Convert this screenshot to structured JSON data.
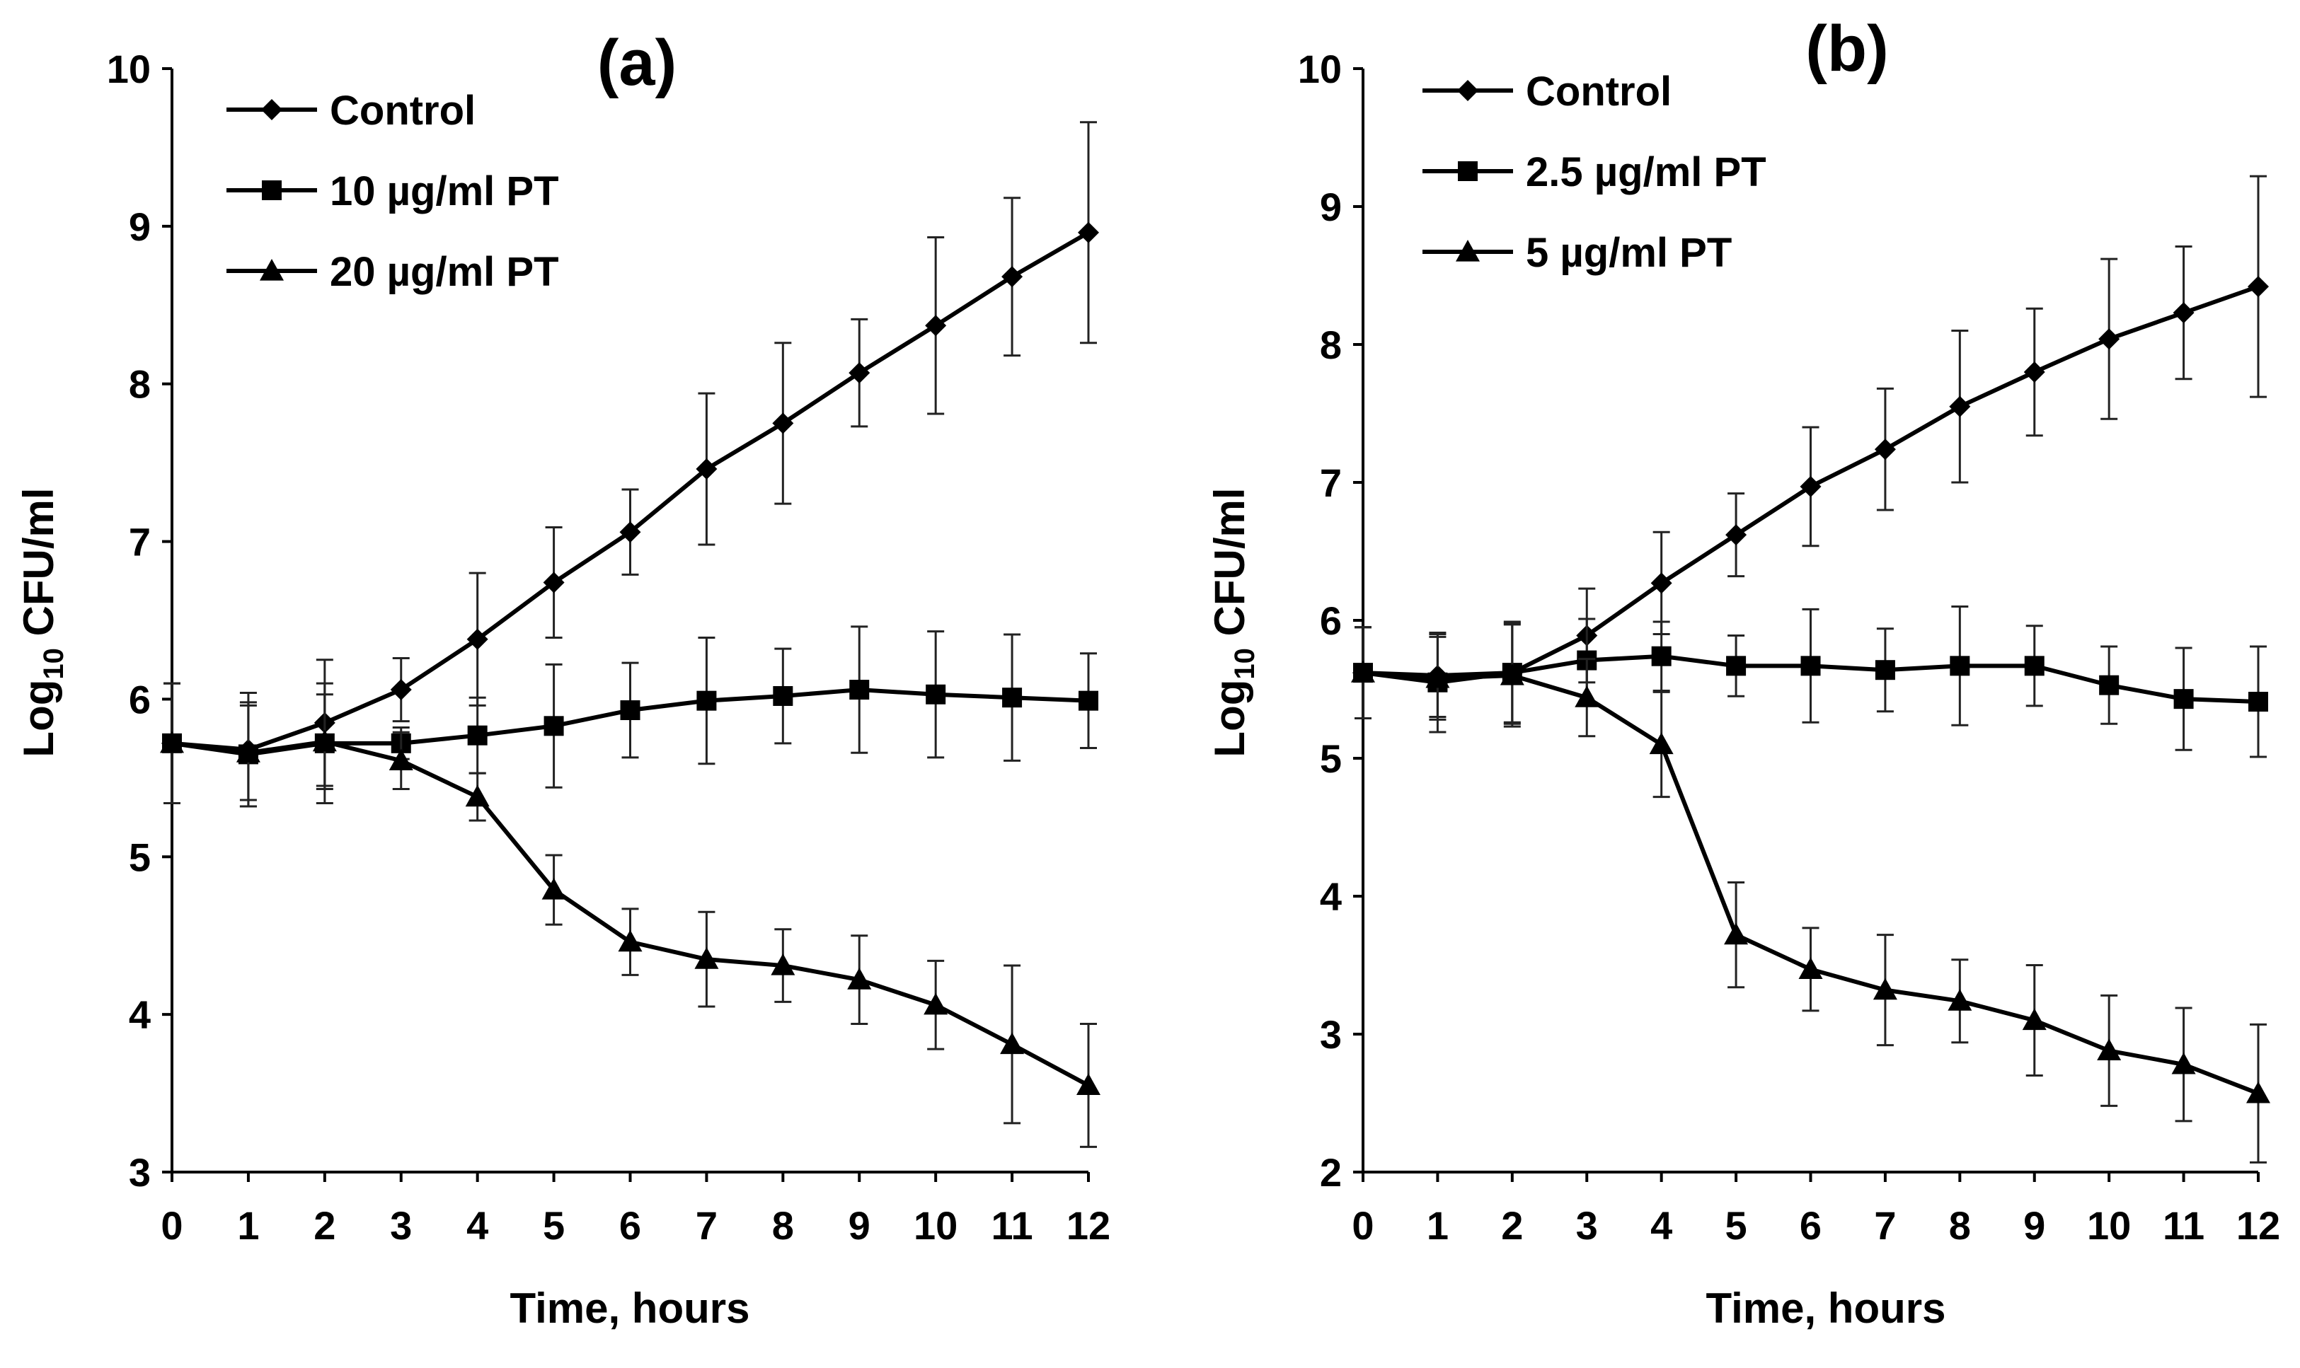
{
  "chart_data": [
    {
      "type": "line",
      "title": "(a)",
      "xlabel": "Time, hours",
      "ylabel_main": "Log",
      "ylabel_sub": "10",
      "ylabel_rest": " CFU/ml",
      "xlim": [
        0,
        12
      ],
      "ylim": [
        3,
        10
      ],
      "x_ticks": [
        "0",
        "1",
        "2",
        "3",
        "4",
        "5",
        "6",
        "7",
        "8",
        "9",
        "10",
        "11",
        "12"
      ],
      "y_ticks": [
        "3",
        "4",
        "5",
        "6",
        "7",
        "8",
        "9",
        "10"
      ],
      "legend_position": "top-left",
      "x": [
        0,
        1,
        2,
        3,
        4,
        5,
        6,
        7,
        8,
        9,
        10,
        11,
        12
      ],
      "series": [
        {
          "name": "Control",
          "marker": "diamond",
          "values": [
            5.72,
            5.68,
            5.85,
            6.06,
            6.38,
            6.74,
            7.06,
            7.46,
            7.75,
            8.07,
            8.37,
            8.68,
            8.96
          ],
          "errors": [
            0.38,
            0.36,
            0.4,
            0.2,
            0.42,
            0.35,
            0.27,
            0.48,
            0.51,
            0.34,
            0.56,
            0.5,
            0.7
          ]
        },
        {
          "name": "10 µg/ml PT",
          "marker": "square",
          "values": [
            5.72,
            5.65,
            5.72,
            5.72,
            5.77,
            5.83,
            5.93,
            5.99,
            6.02,
            6.06,
            6.03,
            6.01,
            5.99
          ],
          "errors": [
            0.38,
            0.33,
            0.38,
            0.1,
            0.24,
            0.39,
            0.3,
            0.4,
            0.3,
            0.4,
            0.4,
            0.4,
            0.3
          ]
        },
        {
          "name": "20 µg/ml PT",
          "marker": "triangle",
          "values": [
            5.72,
            5.66,
            5.73,
            5.61,
            5.38,
            4.79,
            4.46,
            4.35,
            4.31,
            4.22,
            4.06,
            3.81,
            3.55
          ],
          "errors": [
            0.38,
            0.3,
            0.3,
            0.18,
            0.15,
            0.22,
            0.21,
            0.3,
            0.23,
            0.28,
            0.28,
            0.5,
            0.39
          ]
        }
      ]
    },
    {
      "type": "line",
      "title": "(b)",
      "xlabel": "Time, hours",
      "ylabel_main": "Log",
      "ylabel_sub": "10",
      "ylabel_rest": " CFU/ml",
      "xlim": [
        0,
        12
      ],
      "ylim": [
        2,
        10
      ],
      "x_ticks": [
        "0",
        "1",
        "2",
        "3",
        "4",
        "5",
        "6",
        "7",
        "8",
        "9",
        "10",
        "11",
        "12"
      ],
      "y_ticks": [
        "2",
        "3",
        "4",
        "5",
        "6",
        "7",
        "8",
        "9",
        "10"
      ],
      "legend_position": "top-left",
      "x": [
        0,
        1,
        2,
        3,
        4,
        5,
        6,
        7,
        8,
        9,
        10,
        11,
        12
      ],
      "series": [
        {
          "name": "Control",
          "marker": "diamond",
          "values": [
            5.62,
            5.6,
            5.62,
            5.89,
            6.27,
            6.62,
            6.97,
            7.24,
            7.55,
            7.8,
            8.04,
            8.23,
            8.42
          ],
          "errors": [
            0.33,
            0.3,
            0.36,
            0.34,
            0.37,
            0.3,
            0.43,
            0.44,
            0.55,
            0.46,
            0.58,
            0.48,
            0.8
          ]
        },
        {
          "name": "2.5 µg/ml PT",
          "marker": "square",
          "values": [
            5.62,
            5.55,
            5.62,
            5.71,
            5.74,
            5.67,
            5.67,
            5.64,
            5.67,
            5.67,
            5.53,
            5.43,
            5.41
          ],
          "errors": [
            0.33,
            0.36,
            0.37,
            0.3,
            0.25,
            0.22,
            0.41,
            0.3,
            0.43,
            0.29,
            0.28,
            0.37,
            0.4
          ]
        },
        {
          "name": "5 µg/ml PT",
          "marker": "triangle",
          "values": [
            5.62,
            5.58,
            5.6,
            5.44,
            5.1,
            3.72,
            3.47,
            3.32,
            3.24,
            3.1,
            2.88,
            2.78,
            2.57
          ],
          "errors": [
            0.33,
            0.3,
            0.37,
            0.28,
            0.38,
            0.38,
            0.3,
            0.4,
            0.3,
            0.4,
            0.4,
            0.41,
            0.5
          ]
        }
      ]
    }
  ]
}
